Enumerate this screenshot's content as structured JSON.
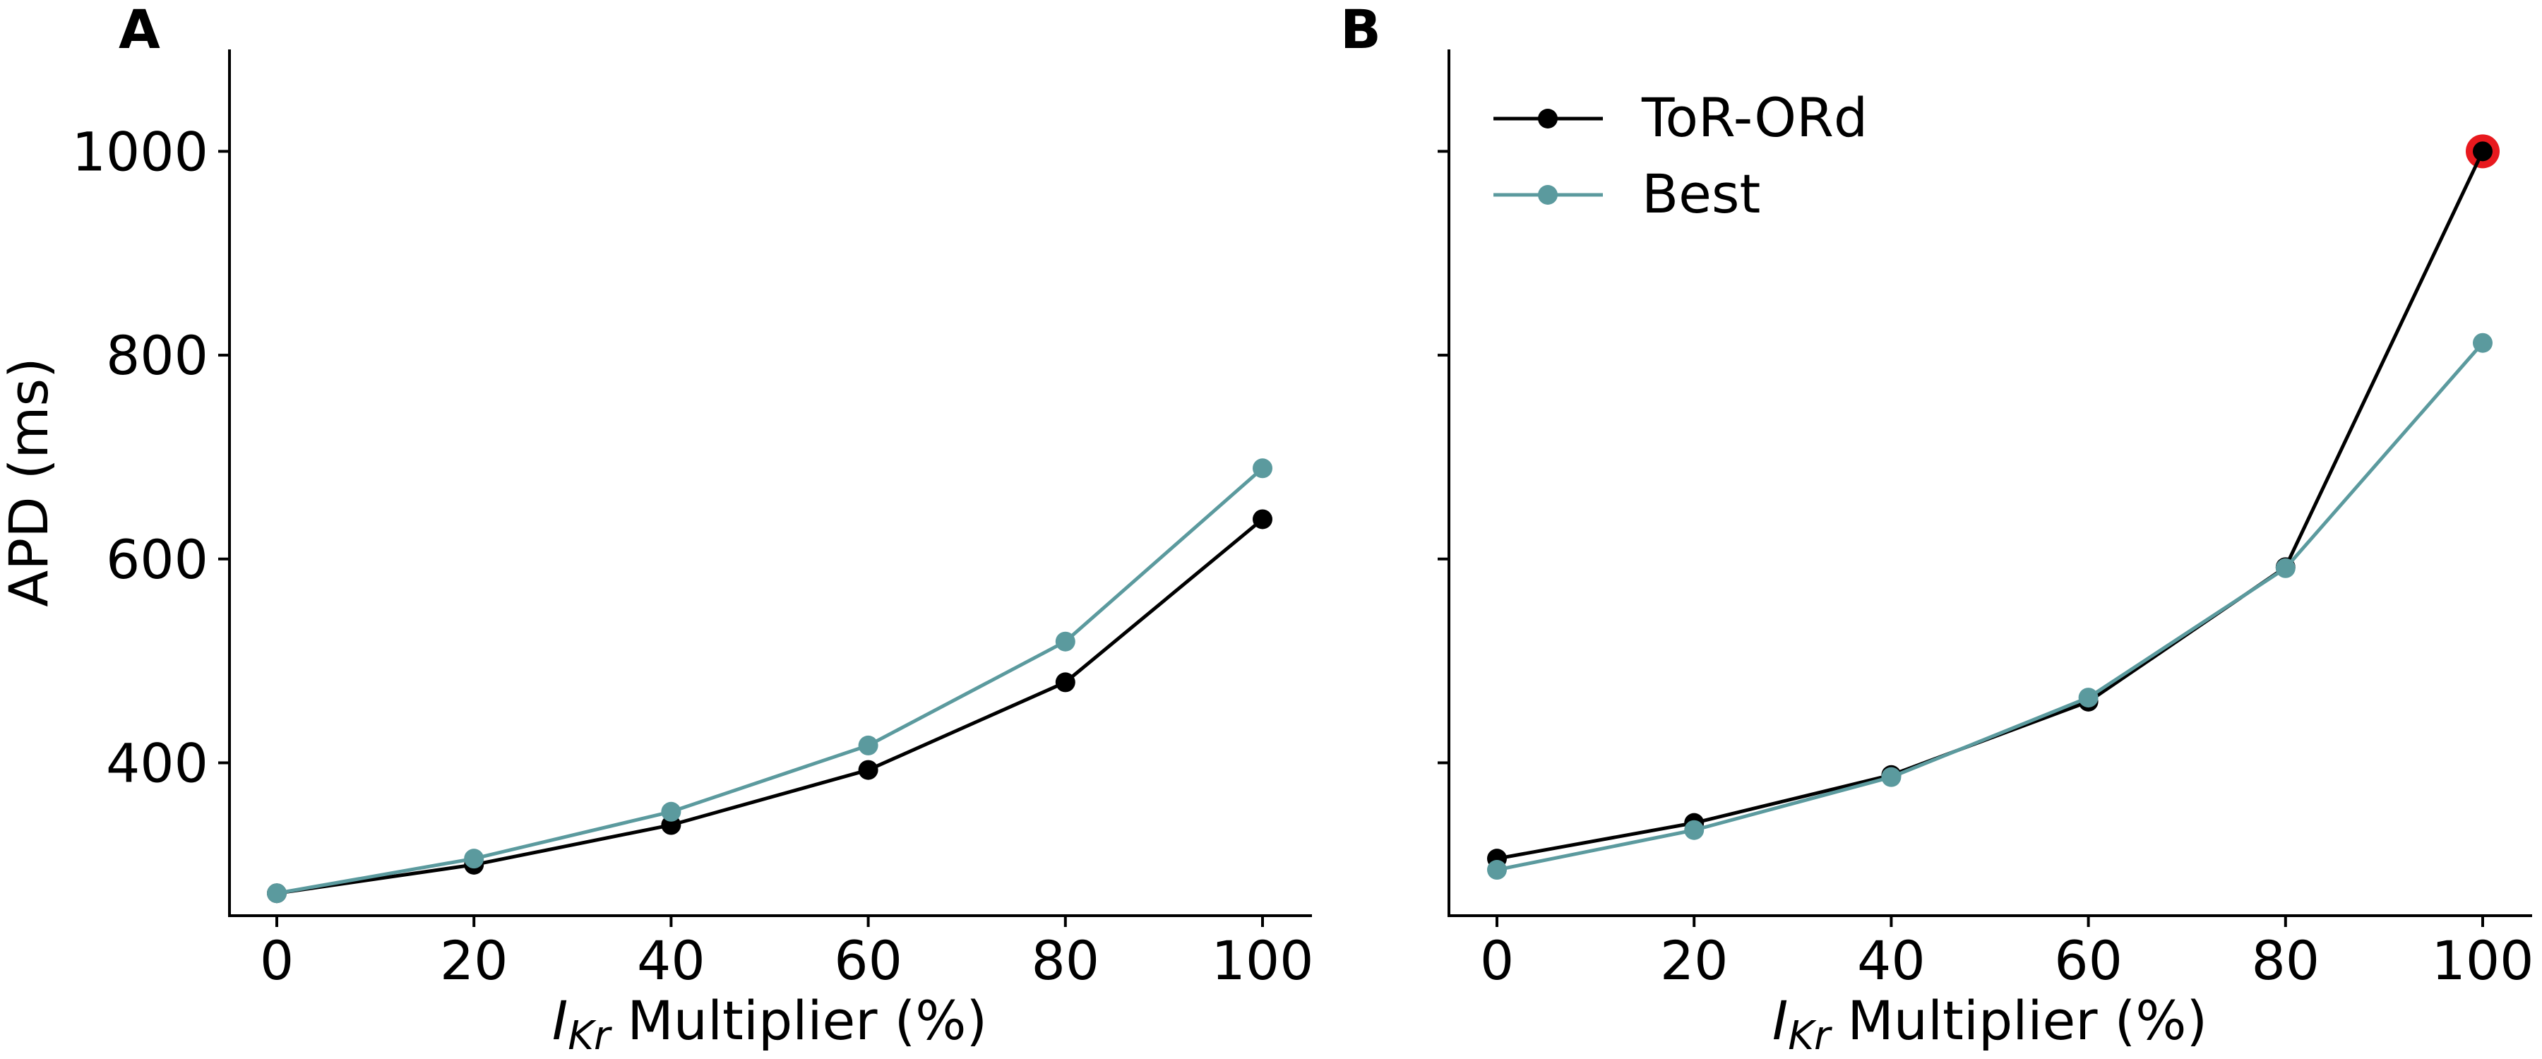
{
  "chart_data": [
    {
      "type": "line",
      "panel_label": "A",
      "x": [
        0,
        20,
        40,
        60,
        80,
        100
      ],
      "series": [
        {
          "name": "ToR-ORd",
          "color": "#000000",
          "values": [
            272,
            300,
            339,
            393,
            479,
            639
          ]
        },
        {
          "name": "Best",
          "color": "#5b9a9e",
          "values": [
            272,
            306,
            352,
            417,
            519,
            689
          ]
        }
      ],
      "xlabel": {
        "italic": "I",
        "sub": "Kr",
        "rest": " Multiplier (%)"
      },
      "ylabel": "APD (ms)",
      "xticks": [
        "0",
        "20",
        "40",
        "60",
        "80",
        "100"
      ],
      "yticks": [
        "400",
        "600",
        "800",
        "1000"
      ],
      "ytick_values": [
        400,
        600,
        800,
        1000
      ],
      "xlim": [
        -5,
        105
      ],
      "ylim": [
        250,
        1100
      ],
      "grid": false,
      "legend": null
    },
    {
      "type": "line",
      "panel_label": "B",
      "x": [
        0,
        20,
        40,
        60,
        80,
        100
      ],
      "series": [
        {
          "name": "ToR-ORd",
          "color": "#000000",
          "values": [
            306,
            341,
            388,
            460,
            592,
            1000
          ]
        },
        {
          "name": "Best",
          "color": "#5b9a9e",
          "values": [
            295,
            334,
            386,
            464,
            591,
            812
          ]
        }
      ],
      "highlight": {
        "series": "ToR-ORd",
        "x": 100,
        "y": 1000,
        "color": "#e8191e"
      },
      "xlabel": {
        "italic": "I",
        "sub": "Kr",
        "rest": " Multiplier (%)"
      },
      "ylabel": "",
      "xticks": [
        "0",
        "20",
        "40",
        "60",
        "80",
        "100"
      ],
      "yticks": [
        "",
        "",
        "",
        ""
      ],
      "ytick_values": [
        400,
        600,
        800,
        1000
      ],
      "xlim": [
        -5,
        105
      ],
      "ylim": [
        250,
        1100
      ],
      "grid": false,
      "legend": "upper-left"
    }
  ]
}
